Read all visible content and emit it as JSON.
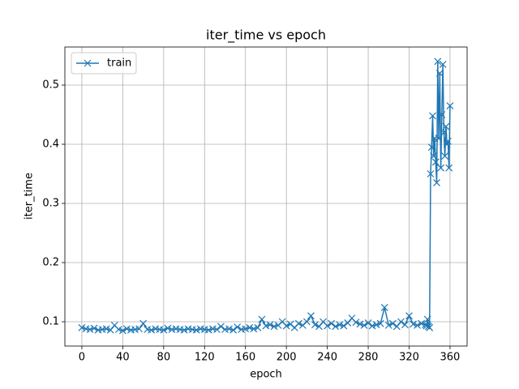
{
  "chart_data": {
    "type": "line",
    "title": "iter_time vs epoch",
    "xlabel": "epoch",
    "ylabel": "iter_time",
    "x": [
      0,
      4,
      8,
      12,
      16,
      20,
      24,
      28,
      32,
      36,
      40,
      44,
      48,
      52,
      56,
      60,
      64,
      68,
      72,
      76,
      80,
      84,
      88,
      92,
      96,
      100,
      104,
      108,
      112,
      116,
      120,
      124,
      128,
      132,
      136,
      140,
      144,
      148,
      152,
      156,
      160,
      164,
      168,
      172,
      176,
      180,
      184,
      188,
      192,
      196,
      200,
      204,
      208,
      212,
      216,
      220,
      224,
      228,
      232,
      236,
      240,
      244,
      248,
      252,
      256,
      260,
      264,
      268,
      272,
      276,
      280,
      284,
      288,
      292,
      296,
      300,
      304,
      308,
      312,
      316,
      320,
      324,
      328,
      332,
      336,
      337,
      338,
      339,
      340,
      341,
      342,
      343,
      344,
      345,
      346,
      347,
      348,
      349,
      350,
      351,
      352,
      353,
      354,
      355,
      356,
      357,
      358,
      359,
      360
    ],
    "series": [
      {
        "name": "train",
        "color": "#1f77b4",
        "values": [
          0.09,
          0.088,
          0.087,
          0.089,
          0.086,
          0.087,
          0.088,
          0.086,
          0.094,
          0.087,
          0.085,
          0.088,
          0.086,
          0.087,
          0.088,
          0.097,
          0.087,
          0.086,
          0.088,
          0.087,
          0.086,
          0.089,
          0.087,
          0.088,
          0.087,
          0.086,
          0.088,
          0.087,
          0.086,
          0.088,
          0.087,
          0.086,
          0.088,
          0.087,
          0.092,
          0.087,
          0.088,
          0.086,
          0.091,
          0.087,
          0.088,
          0.09,
          0.088,
          0.09,
          0.104,
          0.093,
          0.095,
          0.092,
          0.094,
          0.1,
          0.093,
          0.096,
          0.09,
          0.097,
          0.094,
          0.1,
          0.11,
          0.095,
          0.092,
          0.1,
          0.093,
          0.097,
          0.092,
          0.095,
          0.093,
          0.098,
          0.106,
          0.099,
          0.096,
          0.094,
          0.098,
          0.093,
          0.095,
          0.097,
          0.124,
          0.094,
          0.097,
          0.092,
          0.1,
          0.095,
          0.11,
          0.096,
          0.094,
          0.097,
          0.095,
          0.093,
          0.104,
          0.092,
          0.09,
          0.35,
          0.395,
          0.448,
          0.38,
          0.41,
          0.37,
          0.335,
          0.54,
          0.41,
          0.52,
          0.36,
          0.45,
          0.535,
          0.42,
          0.38,
          0.43,
          0.4,
          0.405,
          0.36,
          0.465
        ]
      }
    ],
    "xlim": [
      -16.6,
      376.7
    ],
    "xticks": [
      0,
      40,
      80,
      120,
      160,
      200,
      240,
      280,
      320,
      360
    ],
    "ylim": [
      0.0589,
      0.5644
    ],
    "yticks": [
      0.1,
      0.2,
      0.3,
      0.4,
      0.5
    ],
    "grid": true,
    "legend": "upper left"
  }
}
